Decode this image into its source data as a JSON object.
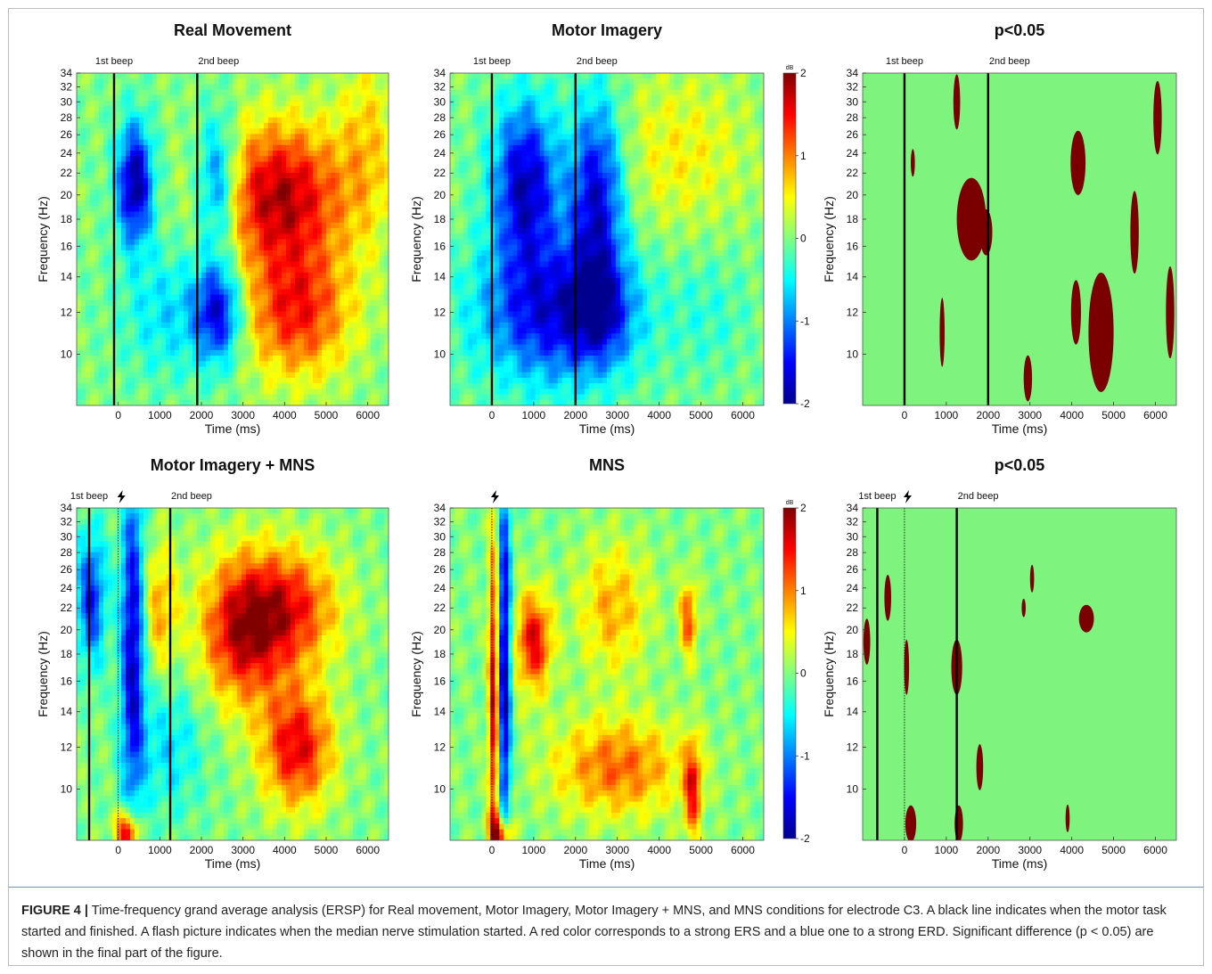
{
  "caption": {
    "label": "FIGURE 4 |",
    "text": "Time-frequency grand average analysis (ERSP) for Real movement, Motor Imagery, Motor Imagery + MNS, and MNS conditions for electrode C3. A black line indicates when the motor task started and finished. A flash picture indicates when the median nerve stimulation started. A red color corresponds to a strong ERS and a blue one to a strong ERD. Significant difference (p < 0.05) are shown in the final part of the figure."
  },
  "colors": {
    "erd": "#00008f",
    "ers": "#800000",
    "significant": "#7a0000",
    "nonsignificant": "#7ef47e",
    "event_line": "#000000"
  },
  "chart_data": [
    {
      "type": "heatmap",
      "title": "Real Movement",
      "xlabel": "Time (ms)",
      "ylabel": "Frequency (Hz)",
      "xticks": [
        0,
        1000,
        2000,
        3000,
        4000,
        5000,
        6000
      ],
      "xlim": [
        -1000,
        6500
      ],
      "yticks": [
        10,
        12,
        14,
        16,
        18,
        20,
        22,
        24,
        26,
        28,
        30,
        32,
        34
      ],
      "ylim": [
        8,
        34
      ],
      "yscale": "log",
      "colorscale": "jet",
      "zlim": [
        -2,
        2
      ],
      "events": [
        {
          "label": "1st beep",
          "time": -100
        },
        {
          "label": "2nd beep",
          "time": 1900
        }
      ],
      "blobs": [
        {
          "t": 400,
          "f": 21,
          "dt": 300,
          "df": 0.18,
          "v": -2
        },
        {
          "t": 2400,
          "f": 21,
          "dt": 350,
          "df": 0.2,
          "v": -1.4
        },
        {
          "t": 2400,
          "f": 12,
          "dt": 400,
          "df": 0.15,
          "v": -1.6
        },
        {
          "t": 1200,
          "f": 12,
          "dt": 800,
          "df": 0.2,
          "v": -0.6
        },
        {
          "t": 3900,
          "f": 20,
          "dt": 1100,
          "df": 0.22,
          "v": 1.8
        },
        {
          "t": 4300,
          "f": 12,
          "dt": 900,
          "df": 0.2,
          "v": 1.4
        },
        {
          "t": 6000,
          "f": 25,
          "dt": 500,
          "df": 0.3,
          "v": 0.6
        }
      ]
    },
    {
      "type": "heatmap",
      "title": "Motor Imagery",
      "xlabel": "Time (ms)",
      "ylabel": "Frequency (Hz)",
      "xticks": [
        0,
        1000,
        2000,
        3000,
        4000,
        5000,
        6000
      ],
      "xlim": [
        -1000,
        6500
      ],
      "yticks": [
        10,
        12,
        14,
        16,
        18,
        20,
        22,
        24,
        26,
        28,
        30,
        32,
        34
      ],
      "ylim": [
        8,
        34
      ],
      "yscale": "log",
      "colorscale": "jet",
      "zlim": [
        -2,
        2
      ],
      "colorbar": {
        "ticks": [
          -2,
          -1,
          0,
          1,
          2
        ],
        "unit": "dB"
      },
      "events": [
        {
          "label": "1st beep",
          "time": 0
        },
        {
          "label": "2nd beep",
          "time": 2000
        }
      ],
      "blobs": [
        {
          "t": 800,
          "f": 21,
          "dt": 550,
          "df": 0.25,
          "v": -1.8
        },
        {
          "t": 2500,
          "f": 20,
          "dt": 450,
          "df": 0.3,
          "v": -1.7
        },
        {
          "t": 1500,
          "f": 12,
          "dt": 1300,
          "df": 0.22,
          "v": -1.6
        },
        {
          "t": 2600,
          "f": 12,
          "dt": 500,
          "df": 0.15,
          "v": -0.8
        },
        {
          "t": 4500,
          "f": 24,
          "dt": 1200,
          "df": 0.25,
          "v": 0.5
        },
        {
          "t": 5200,
          "f": 12,
          "dt": 700,
          "df": 0.2,
          "v": -0.3
        }
      ]
    },
    {
      "type": "heatmap",
      "title": "p<0.05",
      "xlabel": "Time (ms)",
      "ylabel": "Frequency (Hz)",
      "xticks": [
        0,
        1000,
        2000,
        3000,
        4000,
        5000,
        6000
      ],
      "xlim": [
        -1000,
        6500
      ],
      "yticks": [
        10,
        12,
        14,
        16,
        18,
        20,
        22,
        24,
        26,
        28,
        30,
        32,
        34
      ],
      "ylim": [
        8,
        34
      ],
      "yscale": "log",
      "colorscale": "binary",
      "values": [
        "n.s.",
        "p<0.05"
      ],
      "events": [
        {
          "label": "1st beep",
          "time": 0
        },
        {
          "label": "2nd beep",
          "time": 2000
        }
      ],
      "regions": [
        {
          "t": 1600,
          "f": 18,
          "dt": 350,
          "df": 0.18
        },
        {
          "t": 1950,
          "f": 17,
          "dt": 150,
          "df": 0.1
        },
        {
          "t": 1250,
          "f": 30,
          "dt": 80,
          "df": 0.12
        },
        {
          "t": 4150,
          "f": 23,
          "dt": 180,
          "df": 0.14
        },
        {
          "t": 4700,
          "f": 11,
          "dt": 300,
          "df": 0.26
        },
        {
          "t": 4100,
          "f": 12,
          "dt": 120,
          "df": 0.14
        },
        {
          "t": 5500,
          "f": 17,
          "dt": 100,
          "df": 0.18
        },
        {
          "t": 6050,
          "f": 28,
          "dt": 100,
          "df": 0.16
        },
        {
          "t": 6350,
          "f": 12,
          "dt": 100,
          "df": 0.2
        },
        {
          "t": 2950,
          "f": 9,
          "dt": 100,
          "df": 0.1
        },
        {
          "t": 900,
          "f": 11,
          "dt": 60,
          "df": 0.15
        },
        {
          "t": 200,
          "f": 23,
          "dt": 50,
          "df": 0.06
        }
      ]
    },
    {
      "type": "heatmap",
      "title": "Motor Imagery + MNS",
      "xlabel": "Time (ms)",
      "ylabel": "Frequency (Hz)",
      "xticks": [
        0,
        1000,
        2000,
        3000,
        4000,
        5000,
        6000
      ],
      "xlim": [
        -1000,
        6500
      ],
      "yticks": [
        10,
        12,
        14,
        16,
        18,
        20,
        22,
        24,
        26,
        28,
        30,
        32,
        34
      ],
      "ylim": [
        8,
        34
      ],
      "yscale": "log",
      "colorscale": "jet",
      "zlim": [
        -2,
        2
      ],
      "events": [
        {
          "label": "1st beep",
          "time": -700
        },
        {
          "label": "stimulation",
          "time": 0,
          "icon": "flash-icon"
        },
        {
          "label": "2nd beep",
          "time": 1250
        }
      ],
      "blobs": [
        {
          "t": -650,
          "f": 23,
          "dt": 250,
          "df": 0.2,
          "v": -1.4
        },
        {
          "t": 350,
          "f": 19,
          "dt": 200,
          "df": 0.5,
          "v": -1.8
        },
        {
          "t": 200,
          "f": 8.3,
          "dt": 180,
          "df": 0.06,
          "v": 2
        },
        {
          "t": 3000,
          "f": 20,
          "dt": 700,
          "df": 0.22,
          "v": 1.7
        },
        {
          "t": 4300,
          "f": 12,
          "dt": 600,
          "df": 0.18,
          "v": 1.6
        },
        {
          "t": 4200,
          "f": 22,
          "dt": 800,
          "df": 0.18,
          "v": 1.3
        },
        {
          "t": 1000,
          "f": 22,
          "dt": 300,
          "df": 0.2,
          "v": 0.8
        },
        {
          "t": 1200,
          "f": 12,
          "dt": 600,
          "df": 0.2,
          "v": -0.6
        }
      ]
    },
    {
      "type": "heatmap",
      "title": "MNS",
      "xlabel": "Time (ms)",
      "ylabel": "Frequency (Hz)",
      "xticks": [
        0,
        1000,
        2000,
        3000,
        4000,
        5000,
        6000
      ],
      "xlim": [
        -1000,
        6500
      ],
      "yticks": [
        10,
        12,
        14,
        16,
        18,
        20,
        22,
        24,
        26,
        28,
        30,
        32,
        34
      ],
      "ylim": [
        8,
        34
      ],
      "yscale": "log",
      "colorscale": "jet",
      "zlim": [
        -2,
        2
      ],
      "colorbar": {
        "ticks": [
          -2,
          -1,
          0,
          1,
          2
        ],
        "unit": "dB"
      },
      "events": [
        {
          "label": "stimulation",
          "time": 0,
          "icon": "flash-icon"
        }
      ],
      "blobs": [
        {
          "t": 300,
          "f": 17,
          "dt": 110,
          "df": 0.6,
          "v": -2
        },
        {
          "t": 50,
          "f": 15,
          "dt": 90,
          "df": 0.5,
          "v": 1.8
        },
        {
          "t": 200,
          "f": 8.2,
          "dt": 180,
          "df": 0.06,
          "v": 2
        },
        {
          "t": 1000,
          "f": 19,
          "dt": 300,
          "df": 0.15,
          "v": 1.6
        },
        {
          "t": 3000,
          "f": 11,
          "dt": 1100,
          "df": 0.15,
          "v": 1.1
        },
        {
          "t": 4800,
          "f": 10,
          "dt": 150,
          "df": 0.15,
          "v": 1.4
        },
        {
          "t": 4700,
          "f": 21,
          "dt": 150,
          "df": 0.12,
          "v": 1.2
        },
        {
          "t": 2900,
          "f": 22,
          "dt": 600,
          "df": 0.2,
          "v": 0.8
        }
      ]
    },
    {
      "type": "heatmap",
      "title": "p<0.05",
      "xlabel": "Time (ms)",
      "ylabel": "Frequency (Hz)",
      "xticks": [
        0,
        1000,
        2000,
        3000,
        4000,
        5000,
        6000
      ],
      "xlim": [
        -1000,
        6500
      ],
      "yticks": [
        10,
        12,
        14,
        16,
        18,
        20,
        22,
        24,
        26,
        28,
        30,
        32,
        34
      ],
      "ylim": [
        8,
        34
      ],
      "yscale": "log",
      "colorscale": "binary",
      "values": [
        "n.s.",
        "p<0.05"
      ],
      "events": [
        {
          "label": "1st beep",
          "time": -650
        },
        {
          "label": "stimulation",
          "time": 0,
          "icon": "flash-icon"
        },
        {
          "label": "2nd beep",
          "time": 1250
        }
      ],
      "regions": [
        {
          "t": -900,
          "f": 19,
          "dt": 80,
          "df": 0.1
        },
        {
          "t": -400,
          "f": 23,
          "dt": 80,
          "df": 0.1
        },
        {
          "t": 50,
          "f": 17,
          "dt": 60,
          "df": 0.12
        },
        {
          "t": 150,
          "f": 8.6,
          "dt": 130,
          "df": 0.08
        },
        {
          "t": 1250,
          "f": 17,
          "dt": 130,
          "df": 0.12
        },
        {
          "t": 1300,
          "f": 8.6,
          "dt": 100,
          "df": 0.08
        },
        {
          "t": 1800,
          "f": 11,
          "dt": 80,
          "df": 0.1
        },
        {
          "t": 3050,
          "f": 25,
          "dt": 50,
          "df": 0.06
        },
        {
          "t": 3900,
          "f": 8.8,
          "dt": 50,
          "df": 0.06
        },
        {
          "t": 4350,
          "f": 21,
          "dt": 180,
          "df": 0.06
        },
        {
          "t": 2850,
          "f": 22,
          "dt": 50,
          "df": 0.04
        }
      ]
    }
  ]
}
